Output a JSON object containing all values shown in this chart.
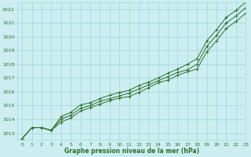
{
  "title": "Graphe pression niveau de la mer (hPa)",
  "bg_color": "#cceef0",
  "grid_color": "#aad8dc",
  "line_color": "#2d6e2d",
  "xlim": [
    -0.5,
    23
  ],
  "ylim": [
    1012.5,
    1022.5
  ],
  "yticks": [
    1013,
    1014,
    1015,
    1016,
    1017,
    1018,
    1019,
    1020,
    1021,
    1022
  ],
  "xticks": [
    0,
    1,
    2,
    3,
    4,
    5,
    6,
    7,
    8,
    9,
    10,
    11,
    12,
    13,
    14,
    15,
    16,
    17,
    18,
    19,
    20,
    21,
    22,
    23
  ],
  "series": [
    [
      1012.6,
      1013.4,
      1013.4,
      1013.2,
      1014.0,
      1014.3,
      1014.8,
      1015.0,
      1015.3,
      1015.5,
      1015.7,
      1015.9,
      1016.2,
      1016.5,
      1016.8,
      1017.1,
      1017.4,
      1017.6,
      1018.0,
      1019.3,
      1020.1,
      1021.0,
      1021.5,
      1022.1
    ],
    [
      1012.6,
      1013.4,
      1013.4,
      1013.2,
      1013.8,
      1014.1,
      1014.6,
      1014.85,
      1015.1,
      1015.35,
      1015.55,
      1015.65,
      1015.95,
      1016.3,
      1016.65,
      1016.85,
      1017.2,
      1017.45,
      1017.65,
      1018.9,
      1019.7,
      1020.6,
      1021.1,
      1021.7
    ],
    [
      1012.6,
      1013.4,
      1013.4,
      1013.2,
      1014.2,
      1014.5,
      1015.05,
      1015.2,
      1015.5,
      1015.75,
      1015.95,
      1016.1,
      1016.45,
      1016.7,
      1017.0,
      1017.35,
      1017.65,
      1018.0,
      1018.4,
      1019.7,
      1020.5,
      1021.4,
      1021.9,
      1022.5
    ]
  ],
  "figsize": [
    3.2,
    2.0
  ],
  "dpi": 100
}
